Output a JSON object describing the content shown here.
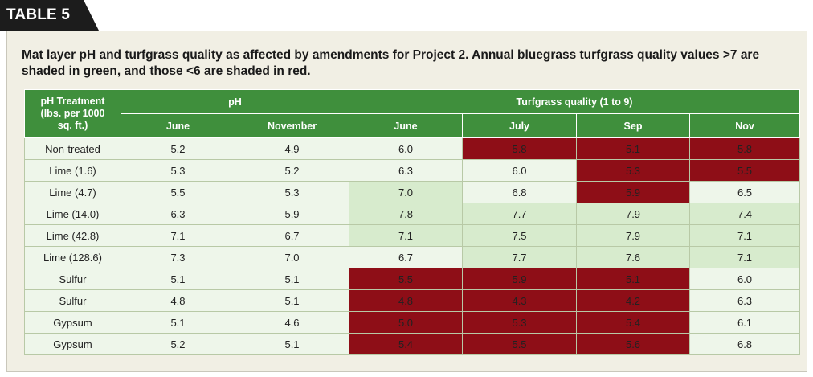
{
  "tab_label": "TABLE 5",
  "caption": "Mat layer pH and turfgrass quality as affected by amendments for Project 2. Annual bluegrass turfgrass quality values >7 are shaded in green, and those <6 are shaded in red.",
  "colors": {
    "header_green": "#3f8f3c",
    "red_shade": "#8e0e17",
    "green_shade": "#d7ebcd",
    "light_cell": "#eef6ea",
    "tab_black": "#1c1c1c"
  },
  "headers": {
    "treatment_line1": "pH Treatment",
    "treatment_line2": "(lbs. per 1000",
    "treatment_line3": "sq. ft.)",
    "group_ph": "pH",
    "group_quality": "Turfgrass quality (1 to 9)",
    "ph_june": "June",
    "ph_november": "November",
    "q_june": "June",
    "q_july": "July",
    "q_sep": "Sep",
    "q_nov": "Nov"
  },
  "rows": [
    {
      "treatment": "Non-treated",
      "ph_june": "5.2",
      "ph_nov": "4.9",
      "q_june": "6.0",
      "q_july": "5.8",
      "q_sep": "5.1",
      "q_nov": "5.8"
    },
    {
      "treatment": "Lime (1.6)",
      "ph_june": "5.3",
      "ph_nov": "5.2",
      "q_june": "6.3",
      "q_july": "6.0",
      "q_sep": "5.3",
      "q_nov": "5.5"
    },
    {
      "treatment": "Lime (4.7)",
      "ph_june": "5.5",
      "ph_nov": "5.3",
      "q_june": "7.0",
      "q_july": "6.8",
      "q_sep": "5.9",
      "q_nov": "6.5"
    },
    {
      "treatment": "Lime (14.0)",
      "ph_june": "6.3",
      "ph_nov": "5.9",
      "q_june": "7.8",
      "q_july": "7.7",
      "q_sep": "7.9",
      "q_nov": "7.4"
    },
    {
      "treatment": "Lime (42.8)",
      "ph_june": "7.1",
      "ph_nov": "6.7",
      "q_june": "7.1",
      "q_july": "7.5",
      "q_sep": "7.9",
      "q_nov": "7.1"
    },
    {
      "treatment": "Lime (128.6)",
      "ph_june": "7.3",
      "ph_nov": "7.0",
      "q_june": "6.7",
      "q_july": "7.7",
      "q_sep": "7.6",
      "q_nov": "7.1"
    },
    {
      "treatment": "Sulfur",
      "ph_june": "5.1",
      "ph_nov": "5.1",
      "q_june": "5.5",
      "q_july": "5.9",
      "q_sep": "5.1",
      "q_nov": "6.0"
    },
    {
      "treatment": "Sulfur",
      "ph_june": "4.8",
      "ph_nov": "5.1",
      "q_june": "4.8",
      "q_july": "4.3",
      "q_sep": "4.2",
      "q_nov": "6.3"
    },
    {
      "treatment": "Gypsum",
      "ph_june": "5.1",
      "ph_nov": "4.6",
      "q_june": "5.0",
      "q_july": "5.3",
      "q_sep": "5.4",
      "q_nov": "6.1"
    },
    {
      "treatment": "Gypsum",
      "ph_june": "5.2",
      "ph_nov": "5.1",
      "q_june": "5.4",
      "q_july": "5.5",
      "q_sep": "5.6",
      "q_nov": "6.8"
    }
  ],
  "shading": [
    {
      "q_june": "light",
      "q_july": "red",
      "q_sep": "red",
      "q_nov": "red"
    },
    {
      "q_june": "light",
      "q_july": "light",
      "q_sep": "red",
      "q_nov": "red"
    },
    {
      "q_june": "mid",
      "q_july": "light",
      "q_sep": "red",
      "q_nov": "light"
    },
    {
      "q_june": "mid",
      "q_july": "mid",
      "q_sep": "mid",
      "q_nov": "mid"
    },
    {
      "q_june": "mid",
      "q_july": "mid",
      "q_sep": "mid",
      "q_nov": "mid"
    },
    {
      "q_june": "light",
      "q_july": "mid",
      "q_sep": "mid",
      "q_nov": "mid"
    },
    {
      "q_june": "red",
      "q_july": "red",
      "q_sep": "red",
      "q_nov": "light"
    },
    {
      "q_june": "red",
      "q_july": "red",
      "q_sep": "red",
      "q_nov": "light"
    },
    {
      "q_june": "red",
      "q_july": "red",
      "q_sep": "red",
      "q_nov": "light"
    },
    {
      "q_june": "red",
      "q_july": "red",
      "q_sep": "red",
      "q_nov": "light"
    }
  ]
}
